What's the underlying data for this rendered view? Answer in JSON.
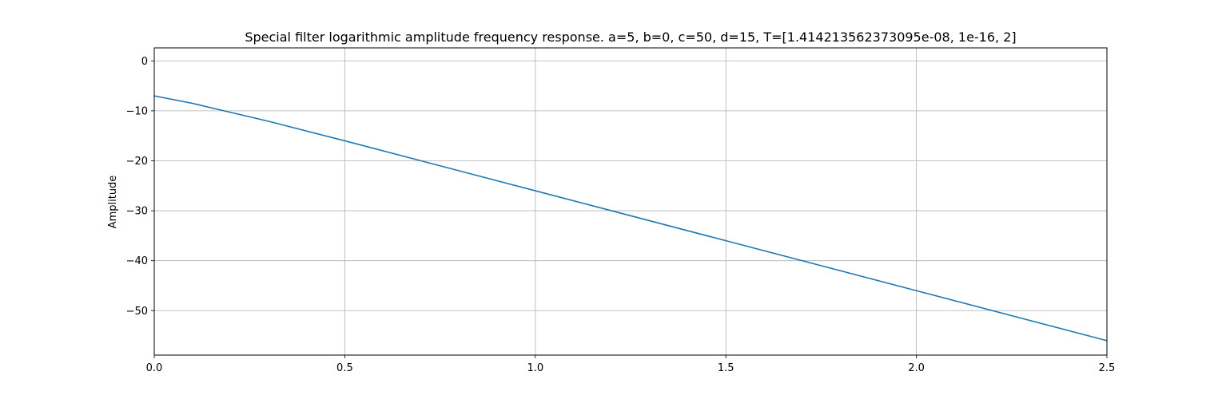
{
  "chart_data": {
    "type": "line",
    "title": "Special filter logarithmic amplitude frequency response. a=5, b=0, c=50, d=15, T=[1.414213562373095e-08, 1e-16, 2]",
    "xlabel": "",
    "ylabel": "Amplitude",
    "xlim": [
      0,
      2.5
    ],
    "ylim": [
      -58.9,
      2.6
    ],
    "xticks": [
      0,
      0.5,
      1.0,
      1.5,
      2.0,
      2.5
    ],
    "xtick_labels": [
      "0.0",
      "0.5",
      "1.0",
      "1.5",
      "2.0",
      "2.5"
    ],
    "yticks": [
      0,
      -10,
      -20,
      -30,
      -40,
      -50
    ],
    "ytick_labels": [
      "0",
      "−10",
      "−20",
      "−30",
      "−40",
      "−50"
    ],
    "grid": true,
    "series": [
      {
        "color": "#1f77b4",
        "x": [
          0,
          0.1,
          0.2,
          0.3,
          0.5,
          0.7,
          1.0,
          1.5,
          2.0,
          2.5
        ],
        "y": [
          -7.0,
          -8.5,
          -10.3,
          -12.1,
          -16.0,
          -20.0,
          -26.0,
          -36.0,
          -46.0,
          -56.0
        ]
      }
    ]
  }
}
